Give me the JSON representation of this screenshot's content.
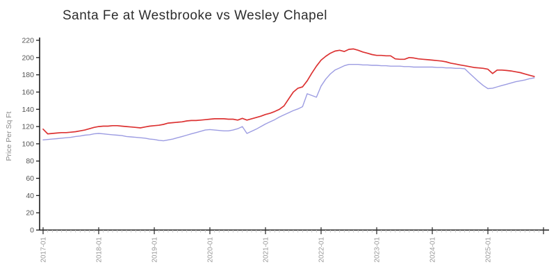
{
  "chart_data": {
    "type": "line",
    "title": "Santa Fe at Westbrooke vs Wesley Chapel",
    "xlabel": "",
    "ylabel": "Price Per Sq Ft",
    "ylim": [
      0,
      220
    ],
    "ytick_step": 20,
    "grid": false,
    "legend_position": "none",
    "x_start_month": "2017-01",
    "x_major_ticks": [
      "2017-01",
      "2018-01",
      "2019-01",
      "2020-01",
      "2021-01",
      "2022-01",
      "2023-01",
      "2024-01",
      "2025-01"
    ],
    "x_minor_tick_unit": "month",
    "series": [
      {
        "name": "Santa Fe at Westbrooke",
        "color": "#dc3232",
        "values": [
          117,
          111.5,
          112,
          112.5,
          113,
          113,
          113.5,
          114,
          115,
          116,
          117.5,
          119,
          120,
          120.5,
          120.5,
          121,
          121,
          120.5,
          120,
          119.5,
          119,
          118.5,
          119.5,
          120.5,
          121,
          121.5,
          122.5,
          124,
          124.5,
          125,
          125.5,
          126.5,
          127,
          127,
          127.5,
          128,
          128.5,
          129,
          129,
          129,
          128.5,
          128.5,
          127.5,
          129.5,
          127.5,
          129,
          130.5,
          132,
          134,
          135.5,
          137.5,
          140,
          144,
          152,
          160,
          164.5,
          166,
          173,
          182,
          190,
          197,
          201.5,
          205,
          207.5,
          208.5,
          207,
          209.5,
          210,
          208.5,
          206.5,
          205,
          203.5,
          202.5,
          202.5,
          202,
          202,
          198.5,
          198,
          198,
          200,
          199.5,
          198.5,
          198,
          197.5,
          197,
          196.5,
          196,
          195,
          193.5,
          192.5,
          191.5,
          190.5,
          189.5,
          188.5,
          188,
          187.5,
          186.5,
          181.5,
          185.5,
          185.5,
          185,
          184.5,
          183.5,
          182.5,
          181,
          179.5,
          178
        ]
      },
      {
        "name": "Wesley Chapel",
        "color": "#9c9ce2",
        "values": [
          104.5,
          105,
          105.5,
          106,
          106.5,
          107,
          107.5,
          108.5,
          109,
          110,
          110.5,
          111.5,
          112,
          111.5,
          111,
          110.5,
          110,
          109.5,
          108.5,
          108,
          107.5,
          107,
          106.5,
          105.5,
          105,
          104,
          103.5,
          104.5,
          105.5,
          107,
          108.5,
          110,
          111.5,
          113,
          114.5,
          116,
          116.5,
          116,
          115.5,
          115,
          115,
          116,
          117.5,
          120,
          112,
          114.5,
          117,
          120,
          123,
          125.5,
          128,
          131,
          133.5,
          136,
          138.5,
          140.5,
          143,
          158,
          156,
          154,
          167,
          175,
          181,
          185.5,
          188,
          190.5,
          192,
          192,
          192,
          191.5,
          191.5,
          191,
          191,
          190.5,
          190.5,
          190,
          190,
          190,
          189.5,
          189.5,
          189,
          189,
          189,
          189,
          189,
          188.5,
          188.5,
          188,
          188,
          187.5,
          187.5,
          187,
          182,
          177,
          172,
          167.5,
          164,
          164.5,
          166,
          167.5,
          169,
          170.5,
          172,
          173,
          174,
          175.5,
          176.5
        ]
      }
    ]
  },
  "colors": {
    "axis": "#1a1a1a",
    "y_tick_label": "#555555",
    "x_tick_label": "#999999",
    "minor_tick": "#c8c8c8",
    "major_tick": "#333333",
    "title": "#2d2d2d",
    "y_axis_label": "#8a8a8a"
  }
}
